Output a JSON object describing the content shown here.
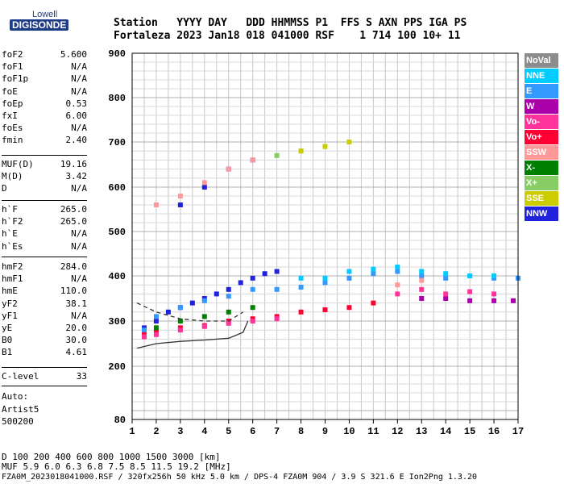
{
  "logo": {
    "top": "Lowell",
    "bottom": "DIGISONDE"
  },
  "header": {
    "line1": "Station   YYYY DAY   DDD HHMMSS P1  FFS S AXN PPS IGA PS",
    "line2": "Fortaleza 2023 Jan18 018 041000 RSF    1 714 100 10+ 11"
  },
  "params_group1": [
    {
      "k": "foF2",
      "v": "5.600"
    },
    {
      "k": "foF1",
      "v": "N/A"
    },
    {
      "k": "foF1p",
      "v": "N/A"
    },
    {
      "k": "foE",
      "v": "N/A"
    },
    {
      "k": "foEp",
      "v": "0.53"
    },
    {
      "k": "fxI",
      "v": "6.00"
    },
    {
      "k": "foEs",
      "v": "N/A"
    },
    {
      "k": "fmin",
      "v": "2.40"
    }
  ],
  "params_group2": [
    {
      "k": "MUF(D)",
      "v": "19.16"
    },
    {
      "k": "M(D)",
      "v": "3.42"
    },
    {
      "k": "D",
      "v": "N/A"
    }
  ],
  "params_group3": [
    {
      "k": "h`F",
      "v": "265.0"
    },
    {
      "k": "h`F2",
      "v": "265.0"
    },
    {
      "k": "h`E",
      "v": "N/A"
    },
    {
      "k": "h`Es",
      "v": "N/A"
    }
  ],
  "params_group4": [
    {
      "k": "hmF2",
      "v": "284.0"
    },
    {
      "k": "hmF1",
      "v": "N/A"
    },
    {
      "k": "hmE",
      "v": "110.0"
    },
    {
      "k": "yF2",
      "v": "38.1"
    },
    {
      "k": "yF1",
      "v": "N/A"
    },
    {
      "k": "yE",
      "v": "20.0"
    },
    {
      "k": "B0",
      "v": "30.0"
    },
    {
      "k": "B1",
      "v": "4.61"
    }
  ],
  "params_group5": [
    {
      "k": "C-level",
      "v": "33"
    }
  ],
  "auto": {
    "l1": "Auto:",
    "l2": "Artist5",
    "l3": "500200"
  },
  "legend": [
    {
      "label": "NoVal",
      "color": "#8c8c8c"
    },
    {
      "label": "NNE",
      "color": "#00ccff"
    },
    {
      "label": "E",
      "color": "#3399ff"
    },
    {
      "label": "W",
      "color": "#aa00aa"
    },
    {
      "label": "Vo-",
      "color": "#ff3399"
    },
    {
      "label": "Vo+",
      "color": "#ff0033"
    },
    {
      "label": "SSW",
      "color": "#ff9999"
    },
    {
      "label": "X-",
      "color": "#008000"
    },
    {
      "label": "X+",
      "color": "#88cc66"
    },
    {
      "label": "SSE",
      "color": "#cccc00"
    },
    {
      "label": "NNW",
      "color": "#2222dd"
    }
  ],
  "bottom": {
    "line1": "D     100  200  400  600  800 1000 1500 3000 [km]",
    "line2": "MUF   5.9  6.0  6.3  6.8  7.5  8.5 11.5 19.2 [MHz]",
    "line3": "FZA0M_2023018041000.RSF / 320fx256h 50 kHz 5.0 km / DPS-4 FZA0M 904 / 3.9 S 321.6 E   Ion2Png 1.3.20"
  },
  "chart_data": {
    "type": "scatter",
    "title": "",
    "xlabel": "",
    "ylabel": "",
    "xlim": [
      1,
      17
    ],
    "ylim": [
      80,
      900
    ],
    "x_ticks": [
      "1",
      "2",
      "3",
      "4",
      "5",
      "6",
      "7",
      "8",
      "9",
      "10",
      "11",
      "12",
      "13",
      "14",
      "15",
      "16",
      "17"
    ],
    "y_ticks": [
      "80",
      "200",
      "300",
      "400",
      "500",
      "600",
      "700",
      "800",
      "900"
    ],
    "grid": true,
    "series": [
      {
        "name": "NNW",
        "values": [
          [
            1.5,
            285
          ],
          [
            2,
            300
          ],
          [
            2.5,
            320
          ],
          [
            3,
            330
          ],
          [
            3.5,
            340
          ],
          [
            4,
            350
          ],
          [
            4.5,
            360
          ],
          [
            5,
            370
          ],
          [
            5.5,
            385
          ],
          [
            6,
            395
          ],
          [
            6.5,
            405
          ],
          [
            7,
            410
          ],
          [
            3,
            560
          ],
          [
            4,
            600
          ],
          [
            5,
            640
          ],
          [
            6,
            660
          ]
        ]
      },
      {
        "name": "E",
        "values": [
          [
            1.5,
            280
          ],
          [
            2,
            310
          ],
          [
            3,
            330
          ],
          [
            4,
            345
          ],
          [
            5,
            355
          ],
          [
            6,
            370
          ],
          [
            7,
            370
          ],
          [
            8,
            375
          ],
          [
            9,
            385
          ],
          [
            10,
            395
          ],
          [
            11,
            405
          ],
          [
            12,
            410
          ],
          [
            13,
            400
          ],
          [
            14,
            395
          ],
          [
            15,
            400
          ],
          [
            16,
            395
          ],
          [
            17,
            395
          ]
        ]
      },
      {
        "name": "NNE",
        "values": [
          [
            8,
            395
          ],
          [
            9,
            395
          ],
          [
            10,
            410
          ],
          [
            11,
            415
          ],
          [
            12,
            420
          ],
          [
            13,
            410
          ],
          [
            14,
            405
          ],
          [
            15,
            400
          ],
          [
            16,
            400
          ]
        ]
      },
      {
        "name": "W",
        "values": [
          [
            13,
            350
          ],
          [
            14,
            350
          ],
          [
            15,
            345
          ],
          [
            16,
            345
          ],
          [
            16.8,
            345
          ]
        ]
      },
      {
        "name": "Vo+",
        "values": [
          [
            1.5,
            270
          ],
          [
            2,
            275
          ],
          [
            3,
            285
          ],
          [
            4,
            290
          ],
          [
            5,
            300
          ],
          [
            6,
            305
          ],
          [
            7,
            310
          ],
          [
            8,
            320
          ],
          [
            9,
            325
          ],
          [
            10,
            330
          ],
          [
            11,
            340
          ]
        ]
      },
      {
        "name": "Vo-",
        "values": [
          [
            1.5,
            265
          ],
          [
            2,
            270
          ],
          [
            3,
            280
          ],
          [
            4,
            288
          ],
          [
            5,
            295
          ],
          [
            6,
            300
          ],
          [
            7,
            305
          ],
          [
            12,
            360
          ],
          [
            13,
            370
          ],
          [
            14,
            360
          ],
          [
            15,
            365
          ],
          [
            16,
            360
          ]
        ]
      },
      {
        "name": "SSW",
        "values": [
          [
            2,
            560
          ],
          [
            3,
            580
          ],
          [
            4,
            610
          ],
          [
            5,
            640
          ],
          [
            6,
            660
          ],
          [
            12,
            380
          ],
          [
            13,
            390
          ]
        ]
      },
      {
        "name": "X-",
        "values": [
          [
            2,
            285
          ],
          [
            3,
            300
          ],
          [
            4,
            310
          ],
          [
            5,
            320
          ],
          [
            6,
            330
          ]
        ]
      },
      {
        "name": "X+",
        "values": [
          [
            7,
            670
          ],
          [
            8,
            680
          ],
          [
            9,
            690
          ],
          [
            10,
            700
          ]
        ]
      },
      {
        "name": "SSE",
        "values": [
          [
            8,
            680
          ],
          [
            9,
            690
          ],
          [
            10,
            700
          ]
        ]
      }
    ],
    "profile_curve": [
      [
        1.2,
        240
      ],
      [
        2,
        250
      ],
      [
        3,
        255
      ],
      [
        4,
        258
      ],
      [
        5,
        262
      ],
      [
        5.6,
        275
      ],
      [
        5.8,
        300
      ]
    ],
    "dashed_curve": [
      [
        1.2,
        340
      ],
      [
        2,
        320
      ],
      [
        3,
        305
      ],
      [
        4,
        300
      ],
      [
        5,
        300
      ],
      [
        5.6,
        320
      ]
    ]
  }
}
